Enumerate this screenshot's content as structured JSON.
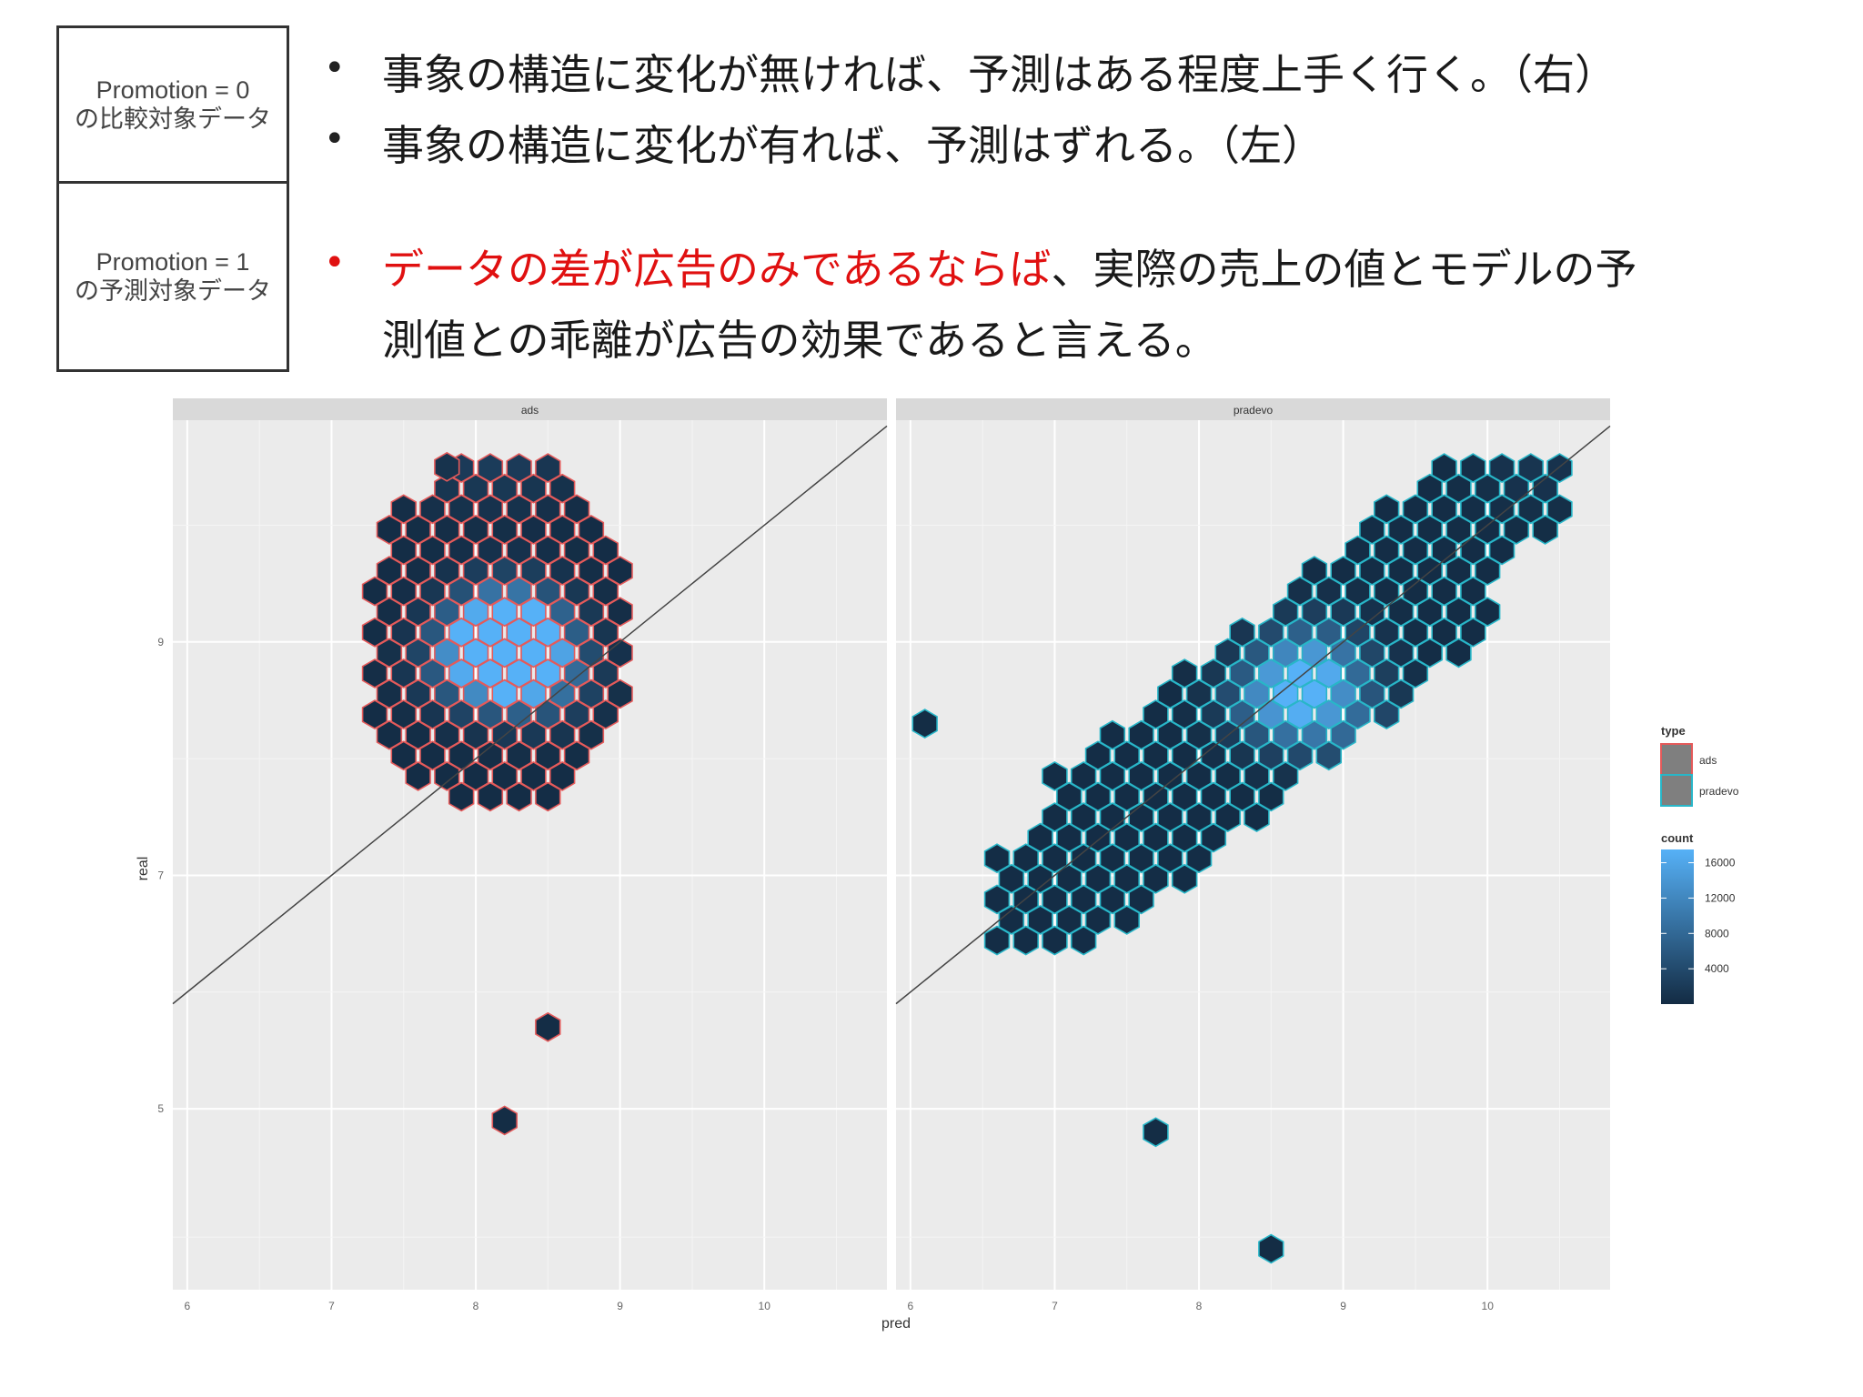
{
  "boxes": [
    {
      "line1": "Promotion = 0",
      "line2": "の比較対象データ"
    },
    {
      "line1": "Promotion = 1",
      "line2": "の予測対象データ"
    }
  ],
  "bullets": [
    "事象の構造に変化が無ければ、予測はある程度上手く行く。（右）",
    "事象の構造に変化が有れば、予測はずれる。（左）"
  ],
  "bullet3": {
    "red": "データの差が広告のみであるならば",
    "rest1": "、実際の売上の値とモデルの予",
    "rest2": "測値との乖離が広告の効果であると言える。"
  },
  "chart_data": {
    "type": "hexbin",
    "xlabel": "pred",
    "ylabel": "real",
    "xlim": [
      5.9,
      10.85
    ],
    "ylim": [
      3.45,
      10.9
    ],
    "xticks": [
      6,
      7,
      8,
      9,
      10
    ],
    "yticks": [
      5,
      7,
      9
    ],
    "reference_line": "y = x",
    "panels": [
      {
        "name": "ads",
        "border_color": "#e45a5a",
        "bins": [
          {
            "x": 7.8,
            "y": 10.5,
            "count": 1000
          },
          {
            "x": 8.1,
            "y": 10.5,
            "count": 1000
          },
          {
            "x": 8.4,
            "y": 10.5,
            "count": 1000
          },
          {
            "x": 8.2,
            "y": 9.2,
            "count": 8000
          },
          {
            "x": 8.2,
            "y": 9.0,
            "count": 14000
          },
          {
            "x": 8.25,
            "y": 8.9,
            "count": 16000
          },
          {
            "x": 8.4,
            "y": 8.7,
            "count": 9000
          },
          {
            "x": 8.0,
            "y": 8.8,
            "count": 7000
          },
          {
            "x": 8.5,
            "y": 5.7,
            "count": 300
          },
          {
            "x": 8.2,
            "y": 4.9,
            "count": 200
          }
        ]
      },
      {
        "name": "pradevo",
        "border_color": "#28b6c8",
        "bins": [
          {
            "x": 8.6,
            "y": 8.5,
            "count": 14000
          },
          {
            "x": 8.8,
            "y": 8.8,
            "count": 12000
          },
          {
            "x": 9.0,
            "y": 8.3,
            "count": 6000
          },
          {
            "x": 10.3,
            "y": 10.5,
            "count": 1000
          },
          {
            "x": 6.1,
            "y": 8.3,
            "count": 200
          },
          {
            "x": 7.7,
            "y": 4.8,
            "count": 200
          },
          {
            "x": 8.5,
            "y": 3.8,
            "count": 200
          }
        ]
      }
    ],
    "legend": {
      "type_title": "type",
      "type_entries": [
        {
          "label": "ads",
          "color": "#e45a5a"
        },
        {
          "label": "pradevo",
          "color": "#28b6c8"
        }
      ],
      "count_title": "count",
      "count_ticks": [
        16000,
        12000,
        8000,
        4000
      ],
      "count_range": [
        0,
        17500
      ],
      "position": "right"
    }
  },
  "colors": {
    "panel_bg": "#ebebeb",
    "strip_bg": "#d9d9d9",
    "low": "#132b43",
    "high": "#56b1f7",
    "red_text": "#e01010"
  }
}
